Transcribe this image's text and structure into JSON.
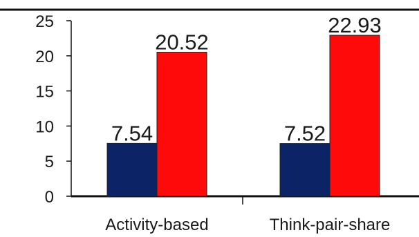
{
  "chart_data": {
    "type": "bar",
    "categories": [
      "Activity-based",
      "Think-pair-share"
    ],
    "series": [
      {
        "values": [
          7.54,
          7.52
        ],
        "color": "#0c2466"
      },
      {
        "values": [
          20.52,
          22.93
        ],
        "color": "#ff0a0a"
      }
    ],
    "data_labels": [
      [
        "7.54",
        "7.52"
      ],
      [
        "20.52",
        "22.93"
      ]
    ],
    "y_ticks": [
      "0",
      "5",
      "10",
      "15",
      "20",
      "25"
    ],
    "ylim": [
      0,
      25
    ],
    "title": "",
    "xlabel": "",
    "ylabel": "",
    "grid": false,
    "legend": "none"
  }
}
